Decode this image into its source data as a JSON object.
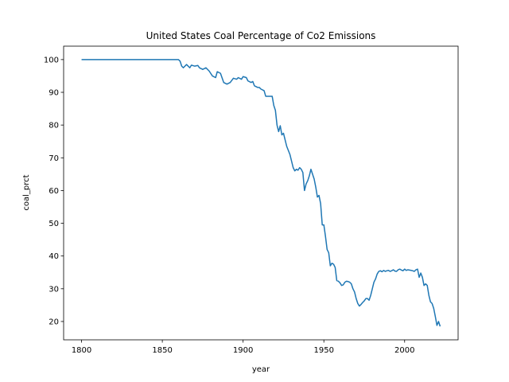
{
  "chart_data": {
    "type": "line",
    "title": "United States Coal Percentage of Co2 Emissions",
    "x_label": "year",
    "y_label": "coal_prct",
    "xlim": [
      1788.9,
      2033.1
    ],
    "ylim": [
      14.4,
      104.1
    ],
    "xticks": [
      1800,
      1850,
      1900,
      1950,
      2000
    ],
    "yticks": [
      20,
      30,
      40,
      50,
      60,
      70,
      80,
      90,
      100
    ],
    "grid": false,
    "x": [
      1800,
      1860,
      1861,
      1862,
      1863,
      1865,
      1867,
      1868,
      1870,
      1872,
      1873,
      1875,
      1877,
      1879,
      1881,
      1883,
      1884,
      1886,
      1888,
      1890,
      1892,
      1894,
      1896,
      1897,
      1899,
      1900,
      1902,
      1903,
      1905,
      1906,
      1907,
      1909,
      1910,
      1911,
      1913,
      1914,
      1918,
      1919,
      1920,
      1921,
      1922,
      1923,
      1924,
      1925,
      1926,
      1927,
      1929,
      1931,
      1932,
      1933,
      1934,
      1935,
      1936,
      1937,
      1938,
      1939,
      1940,
      1941,
      1942,
      1943,
      1944,
      1945,
      1946,
      1947,
      1948,
      1949,
      1950,
      1951,
      1952,
      1953,
      1954,
      1955,
      1956,
      1957,
      1958,
      1959,
      1960,
      1961,
      1962,
      1963,
      1964,
      1965,
      1966,
      1967,
      1968,
      1969,
      1970,
      1971,
      1972,
      1973,
      1974,
      1975,
      1976,
      1977,
      1978,
      1979,
      1980,
      1981,
      1982,
      1983,
      1984,
      1985,
      1986,
      1987,
      1988,
      1989,
      1990,
      1991,
      1992,
      1993,
      1994,
      1995,
      1996,
      1997,
      1998,
      1999,
      2000,
      2001,
      2002,
      2003,
      2004,
      2005,
      2006,
      2007,
      2008,
      2009,
      2010,
      2011,
      2012,
      2013,
      2014,
      2015,
      2016,
      2017,
      2018,
      2019,
      2020,
      2021,
      2022
    ],
    "series": [
      {
        "name": "coal_prct",
        "color": "#1f77b4",
        "values": [
          100,
          100,
          99.5,
          98,
          97.5,
          98.5,
          97.5,
          98.3,
          98,
          98.2,
          97.5,
          97,
          97.5,
          96.5,
          95,
          94.5,
          96.3,
          95.8,
          93,
          92.5,
          93,
          94.3,
          94,
          94.5,
          94,
          94.8,
          94.5,
          93.5,
          93,
          93.3,
          92,
          91.5,
          91.5,
          91,
          90.5,
          88.8,
          88.8,
          86,
          84.5,
          80,
          78,
          79.8,
          77,
          77.5,
          75.5,
          73.5,
          71,
          67,
          66,
          66.5,
          66.2,
          67,
          66.5,
          65.5,
          60,
          62,
          63,
          64.5,
          66.5,
          65,
          63.5,
          61,
          58,
          58.5,
          56,
          49.5,
          49.5,
          46,
          42,
          41,
          37,
          37.8,
          37.5,
          36.5,
          32.5,
          32.3,
          31.8,
          31,
          31.2,
          32,
          32.3,
          32.2,
          32,
          31.5,
          30,
          29,
          27,
          25.5,
          24.7,
          25.2,
          25.8,
          26.3,
          27,
          27,
          26.5,
          28,
          30,
          32,
          33,
          34.5,
          35.3,
          35.5,
          35.2,
          35.6,
          35.3,
          35.5,
          35.6,
          35.3,
          35.5,
          35.8,
          35.4,
          35.3,
          35.8,
          36,
          35.7,
          35.5,
          36,
          35.6,
          35.8,
          35.7,
          35.6,
          35.5,
          35.3,
          35.8,
          36,
          33.5,
          34.8,
          33.5,
          31,
          31.5,
          31,
          28,
          26,
          25.5,
          24,
          21.5,
          18.8,
          20,
          18.5
        ]
      }
    ]
  }
}
